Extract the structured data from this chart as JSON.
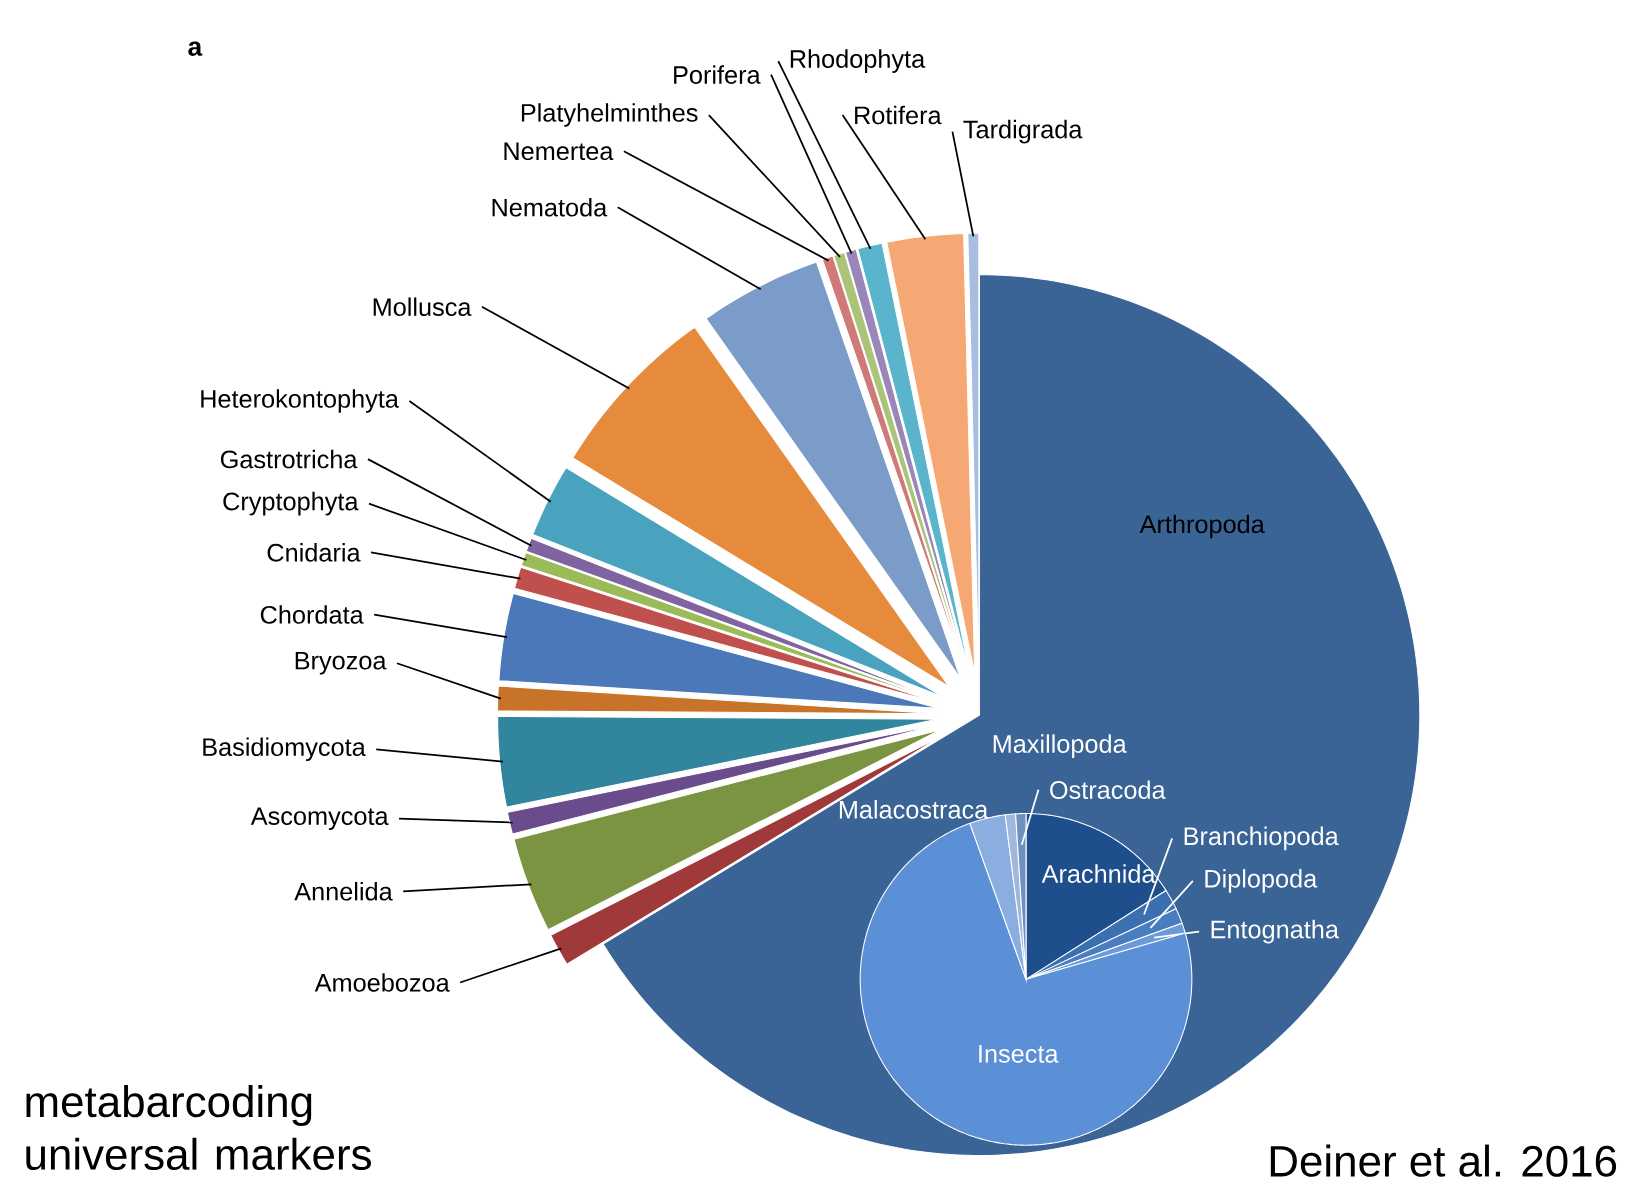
{
  "chart_data": [
    {
      "type": "pie",
      "categories": [
        "Arthropoda",
        "Amoebozoa",
        "Annelida",
        "Ascomycota",
        "Basidiomycota",
        "Bryozoa",
        "Chordata",
        "Cnidaria",
        "Cryptophyta",
        "Gastrotricha",
        "Heterokontophyta",
        "Mollusca",
        "Nematoda",
        "Nemertea",
        "Platyhelminthes",
        "Porifera",
        "Rhodophyta",
        "Rotifera",
        "Tardigrada"
      ],
      "values": [
        66.3,
        1.2,
        3.5,
        0.8,
        3.3,
        0.9,
        3.2,
        0.8,
        0.5,
        0.5,
        2.7,
        6.5,
        4.5,
        0.4,
        0.4,
        0.4,
        0.9,
        2.8,
        0.4
      ],
      "colors": [
        "#3b6496",
        "#a03a3a",
        "#7a9442",
        "#6a4c8c",
        "#31859c",
        "#c8732a",
        "#4a78b8",
        "#c0504d",
        "#9bbb59",
        "#8064a2",
        "#4aa3be",
        "#e68a3c",
        "#7b9cc8",
        "#d07a78",
        "#aac47a",
        "#9a86b8",
        "#5ab4cc",
        "#f5a873",
        "#a9bde0"
      ],
      "annotations": [
        "a",
        "metabarcoding universal markers",
        "Deiner et al. 2016"
      ]
    },
    {
      "type": "pie",
      "categories": [
        "Arachnida",
        "Branchiopoda",
        "Diplopoda",
        "Entognatha",
        "Insecta",
        "Malacostraca",
        "Maxillopoda",
        "Ostracoda"
      ],
      "values": [
        16,
        2,
        1.5,
        1,
        74,
        3.5,
        1,
        1
      ],
      "colors": [
        "#1f4e8c",
        "#3a6fb0",
        "#4a7dc0",
        "#6a9ad8",
        "#5b8fd6",
        "#8aaee0",
        "#a0b8dc",
        "#7090c0"
      ]
    }
  ]
}
